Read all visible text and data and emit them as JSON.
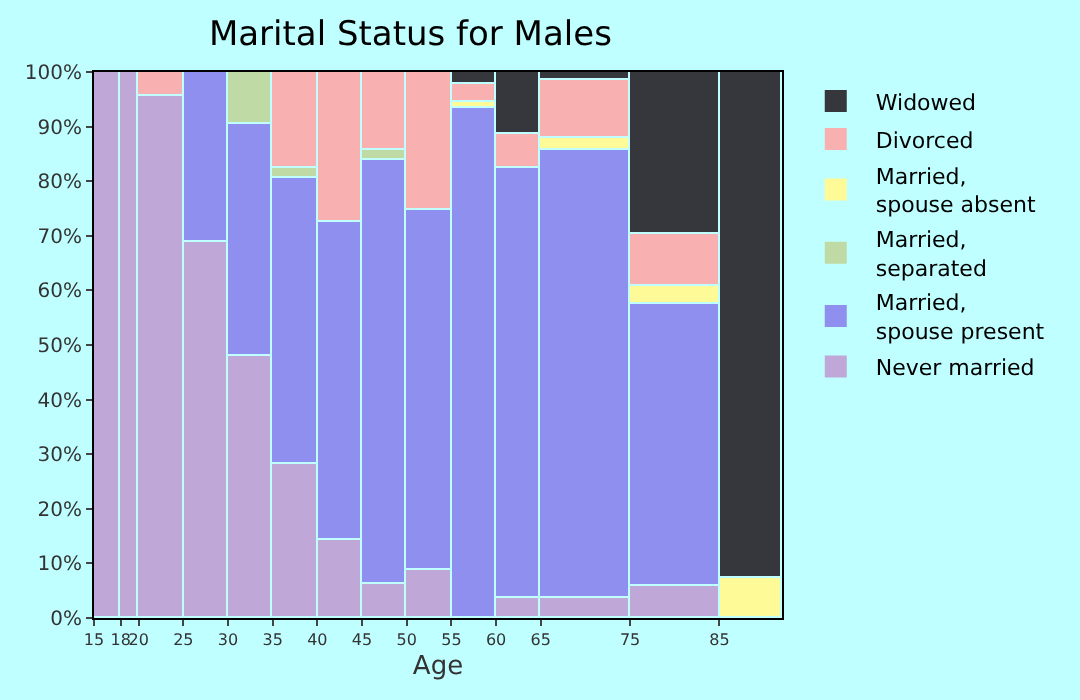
{
  "chart_data": {
    "type": "bar",
    "stacked": true,
    "title": "Marital Status for Males",
    "xlabel": "Age",
    "x": [
      16.5,
      19,
      22.5,
      27.5,
      32.5,
      37.5,
      42.5,
      47.5,
      52.5,
      57.5,
      62.5,
      70,
      80,
      88.5
    ],
    "xlim": [
      15,
      92
    ],
    "xticks": [
      15,
      18,
      20,
      25,
      30,
      35,
      40,
      45,
      50,
      55,
      60,
      65,
      75,
      85
    ],
    "ylim": [
      0,
      100
    ],
    "yticks": [
      {
        "value": 0,
        "label": "0%"
      },
      {
        "value": 10,
        "label": "10%"
      },
      {
        "value": 20,
        "label": "20%"
      },
      {
        "value": 30,
        "label": "30%"
      },
      {
        "value": 40,
        "label": "40%"
      },
      {
        "value": 50,
        "label": "50%"
      },
      {
        "value": 60,
        "label": "60%"
      },
      {
        "value": 70,
        "label": "70%"
      },
      {
        "value": 80,
        "label": "80%"
      },
      {
        "value": 90,
        "label": "90%"
      },
      {
        "value": 100,
        "label": "100%"
      }
    ],
    "legend": "right",
    "series": [
      {
        "name": "Never married",
        "color": "#bfa8d8",
        "values": [
          100,
          100,
          95.5,
          69,
          48,
          28.2,
          14.3,
          6.2,
          8.8,
          null,
          3.7,
          3.7,
          5.9,
          null
        ]
      },
      {
        "name": "Married, spouse present",
        "color": "#8f8ff0",
        "values": [
          null,
          null,
          null,
          31,
          42.3,
          52.5,
          58.3,
          77.8,
          66,
          93.5,
          78.6,
          82.1,
          51.7,
          null
        ]
      },
      {
        "name": "Married, separated",
        "color": "#c0daa6",
        "values": [
          null,
          null,
          null,
          null,
          9.7,
          1.6,
          null,
          1.8,
          null,
          null,
          null,
          null,
          null,
          null
        ]
      },
      {
        "name": "Married, spouse absent",
        "color": "#fefa98",
        "values": [
          null,
          null,
          null,
          null,
          null,
          null,
          null,
          null,
          null,
          1.1,
          null,
          2.2,
          3.3,
          7.3
        ]
      },
      {
        "name": "Divorced",
        "color": "#f8b0b0",
        "values": [
          null,
          null,
          4.5,
          null,
          null,
          17.7,
          27.4,
          14.2,
          25.2,
          3.3,
          6.5,
          10.7,
          9.5,
          null
        ]
      },
      {
        "name": "Widowed",
        "color": "#36373c",
        "values": [
          null,
          null,
          null,
          null,
          null,
          null,
          null,
          null,
          null,
          2.1,
          11.2,
          1.3,
          29.6,
          92.7
        ]
      }
    ]
  }
}
